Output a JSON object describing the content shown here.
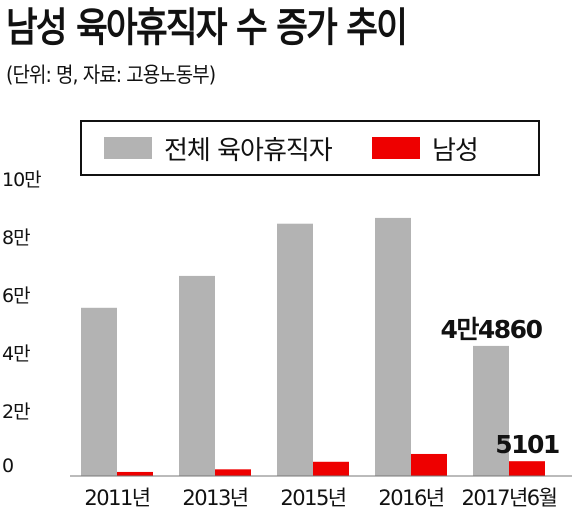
{
  "title": "남성 육아휴직자 수 증가 추이",
  "source": "(단위: 명, 자료: 고용노동부)",
  "colors": {
    "total": "#b3b3b3",
    "male": "#ee0000",
    "text": "#111111"
  },
  "chart_data": {
    "type": "bar",
    "title": "남성 육아휴직자 수 증가 추이",
    "categories": [
      "2011년",
      "2013년",
      "2015년",
      "2016년",
      "2017년6월"
    ],
    "series": [
      {
        "name": "전체 육아휴직자",
        "values": [
          58000,
          69000,
          87000,
          89000,
          44860
        ]
      },
      {
        "name": "남성",
        "values": [
          1400,
          2300,
          4900,
          7600,
          5101
        ]
      }
    ],
    "ylim": [
      0,
      100000
    ],
    "y_ticks": [
      0,
      20000,
      40000,
      60000,
      80000,
      100000
    ],
    "y_tick_labels": [
      "0",
      "2만",
      "4만",
      "6만",
      "8만",
      "10만"
    ],
    "data_labels": [
      {
        "series": "전체 육아휴직자",
        "category": "2017년6월",
        "text": "4만4860"
      },
      {
        "series": "남성",
        "category": "2017년6월",
        "text": "5101"
      }
    ],
    "grid": false,
    "legend": "top"
  }
}
